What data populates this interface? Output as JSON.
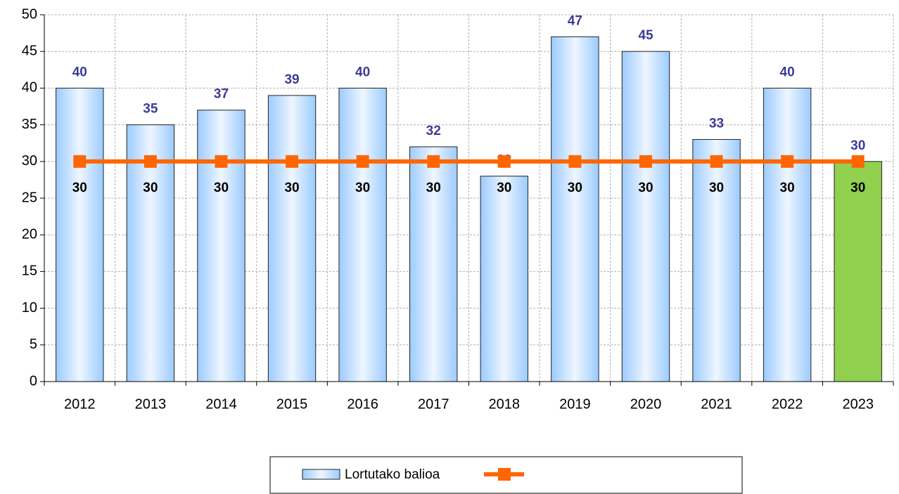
{
  "chart_data": {
    "type": "bar_line",
    "categories": [
      "2012",
      "2013",
      "2014",
      "2015",
      "2016",
      "2017",
      "2018",
      "2019",
      "2020",
      "2021",
      "2022",
      "2023"
    ],
    "series": [
      {
        "name": "Lortutako balioa",
        "type": "bar",
        "color": "#9ccbff",
        "colors": [
          "#9ccbff",
          "#9ccbff",
          "#9ccbff",
          "#9ccbff",
          "#9ccbff",
          "#9ccbff",
          "#9ccbff",
          "#9ccbff",
          "#9ccbff",
          "#9ccbff",
          "#9ccbff",
          "#92d050"
        ],
        "values": [
          40,
          35,
          37,
          39,
          40,
          32,
          28,
          47,
          45,
          33,
          40,
          30
        ]
      },
      {
        "type": "line",
        "color": "#ff6600",
        "values": [
          30,
          30,
          30,
          30,
          30,
          30,
          30,
          30,
          30,
          30,
          30,
          30
        ]
      }
    ],
    "ylim": [
      0,
      50
    ],
    "yticks": [
      0,
      5,
      10,
      15,
      20,
      25,
      30,
      35,
      40,
      45,
      50
    ],
    "grid": true
  }
}
